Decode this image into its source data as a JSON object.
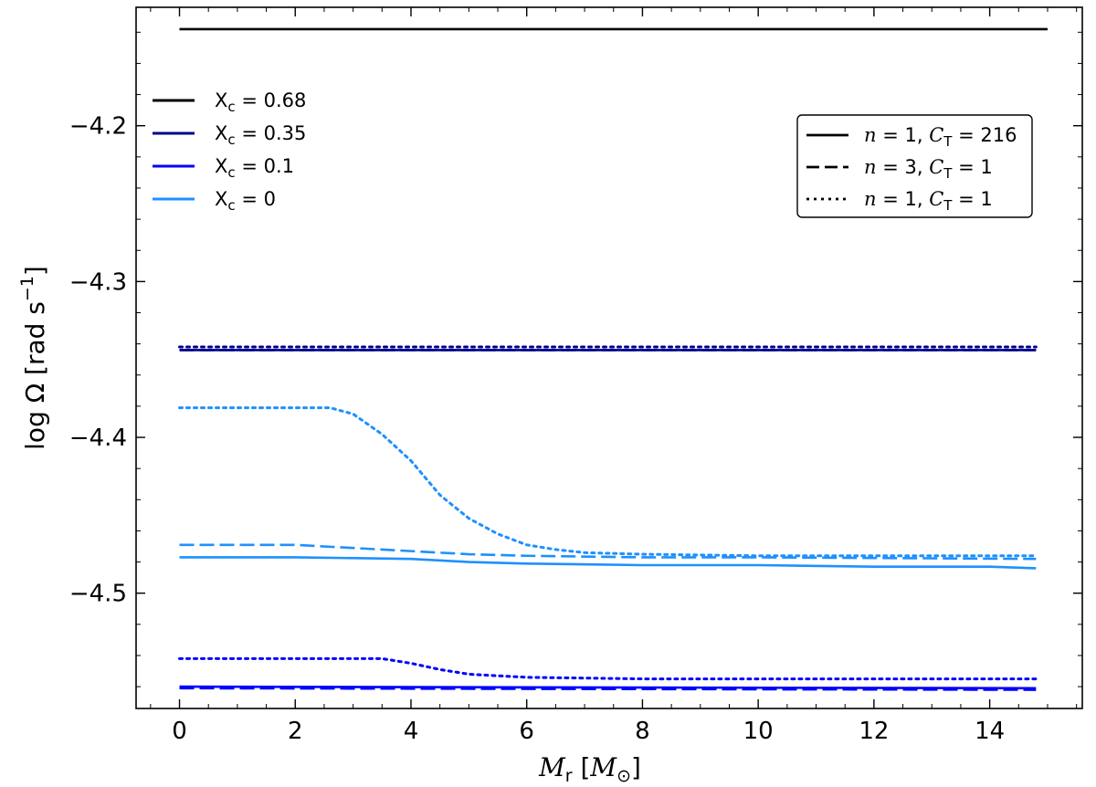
{
  "chart_data": {
    "type": "line",
    "xlabel": "M_r [M_⊙]",
    "ylabel": "log Ω [rad s^−1]",
    "xlim": [
      -0.75,
      15.6
    ],
    "ylim": [
      -4.574,
      -4.124
    ],
    "xticks": [
      "0",
      "2",
      "4",
      "6",
      "8",
      "10",
      "12",
      "14"
    ],
    "yticks": [
      "−4.2",
      "−4.3",
      "−4.4",
      "−4.5"
    ],
    "legend_colors": {
      "position": "upper-left",
      "entries": [
        {
          "label_main": "X",
          "label_sub": "c",
          "label_value": " = 0.68",
          "color": "#000000"
        },
        {
          "label_main": "X",
          "label_sub": "c",
          "label_value": " = 0.35",
          "color": "#00008b"
        },
        {
          "label_main": "X",
          "label_sub": "c",
          "label_value": " = 0.1",
          "color": "#0000ff"
        },
        {
          "label_main": "X",
          "label_sub": "c",
          "label_value": " = 0",
          "color": "#1e90ff"
        }
      ]
    },
    "legend_styles": {
      "position": "upper-right",
      "entries": [
        {
          "n": "n = 1, ",
          "c": "C",
          "c_sub": "T",
          "c_value": " = 216",
          "dash": "solid"
        },
        {
          "n": "n = 3, ",
          "c": "C",
          "c_sub": "T",
          "c_value": " = 1",
          "dash": "dashed"
        },
        {
          "n": "n = 1, ",
          "c": "C",
          "c_sub": "T",
          "c_value": " = 1",
          "dash": "dotted"
        }
      ]
    },
    "series": [
      {
        "xc": "0.68",
        "style": "solid",
        "color": "#000000",
        "x": [
          0,
          15
        ],
        "y": [
          -4.138,
          -4.138
        ]
      },
      {
        "xc": "0.35",
        "style": "solid",
        "color": "#00008b",
        "x": [
          0,
          14.8
        ],
        "y": [
          -4.344,
          -4.344
        ]
      },
      {
        "xc": "0.35",
        "style": "dashed",
        "color": "#00008b",
        "x": [
          0,
          14.8
        ],
        "y": [
          -4.344,
          -4.344
        ]
      },
      {
        "xc": "0.35",
        "style": "dotted",
        "color": "#00008b",
        "x": [
          0,
          14.8
        ],
        "y": [
          -4.342,
          -4.342
        ]
      },
      {
        "xc": "0",
        "style": "solid",
        "color": "#1e90ff",
        "x": [
          0,
          2,
          4,
          5,
          6,
          8,
          10,
          12,
          14,
          14.8
        ],
        "y": [
          -4.477,
          -4.477,
          -4.478,
          -4.48,
          -4.481,
          -4.482,
          -4.482,
          -4.483,
          -4.483,
          -4.484
        ]
      },
      {
        "xc": "0",
        "style": "dashed",
        "color": "#1e90ff",
        "x": [
          0,
          2,
          3,
          4,
          5,
          6,
          8,
          10,
          14.8
        ],
        "y": [
          -4.469,
          -4.469,
          -4.471,
          -4.473,
          -4.475,
          -4.476,
          -4.477,
          -4.477,
          -4.478
        ]
      },
      {
        "xc": "0",
        "style": "dotted",
        "color": "#1e90ff",
        "x": [
          0,
          2.6,
          3.0,
          3.5,
          4.0,
          4.5,
          5.0,
          5.5,
          6.0,
          6.5,
          7.0,
          8.0,
          10.0,
          14.8
        ],
        "y": [
          -4.381,
          -4.381,
          -4.385,
          -4.398,
          -4.415,
          -4.437,
          -4.452,
          -4.462,
          -4.469,
          -4.472,
          -4.474,
          -4.475,
          -4.476,
          -4.476
        ]
      },
      {
        "xc": "0.1",
        "style": "solid",
        "color": "#0000ff",
        "x": [
          0,
          14.8
        ],
        "y": [
          -4.56,
          -4.561
        ]
      },
      {
        "xc": "0.1",
        "style": "dashed",
        "color": "#0000ff",
        "x": [
          0,
          14.8
        ],
        "y": [
          -4.561,
          -4.562
        ]
      },
      {
        "xc": "0.1",
        "style": "dotted",
        "color": "#0000ff",
        "x": [
          0,
          3.5,
          4.0,
          4.5,
          5.0,
          6.0,
          8.0,
          14.8
        ],
        "y": [
          -4.542,
          -4.542,
          -4.545,
          -4.549,
          -4.552,
          -4.554,
          -4.555,
          -4.555
        ]
      }
    ]
  }
}
